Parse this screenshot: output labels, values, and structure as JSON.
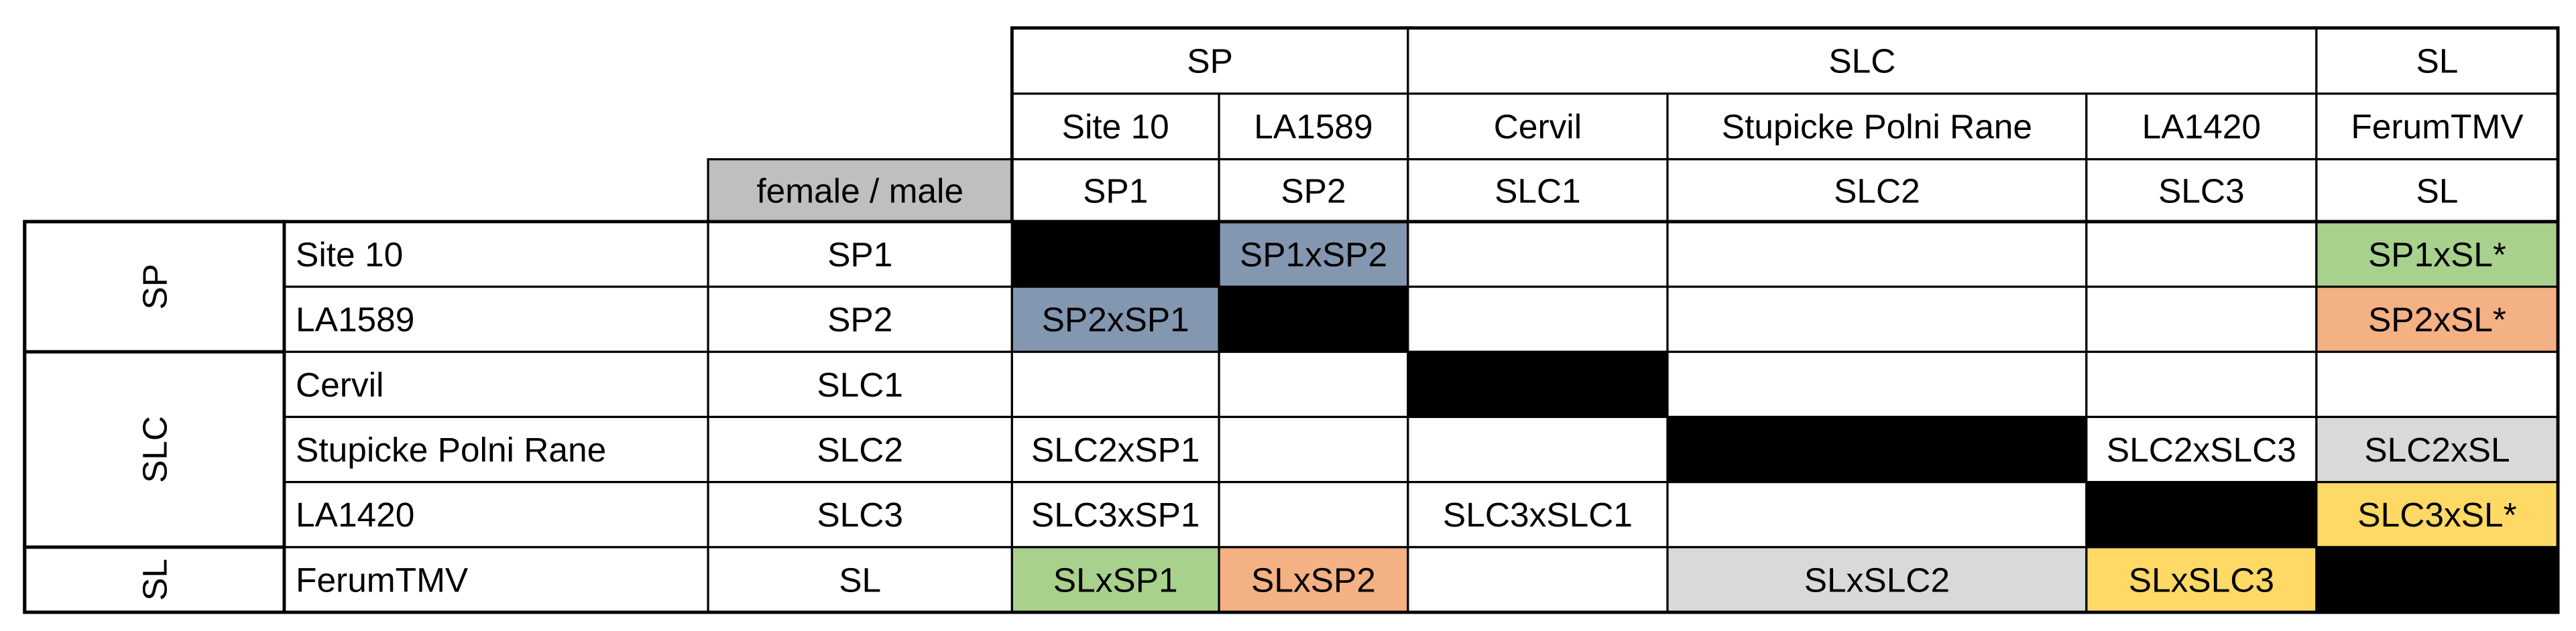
{
  "header": {
    "codes_label": "female / male",
    "codes_label_fill": "#bfbfbf",
    "groups": [
      {
        "label": "SP",
        "accessions": [
          {
            "name": "Site 10",
            "code": "SP1"
          },
          {
            "name": "LA1589",
            "code": "SP2"
          }
        ]
      },
      {
        "label": "SLC",
        "accessions": [
          {
            "name": "Cervil",
            "code": "SLC1"
          },
          {
            "name": "Stupicke Polni Rane",
            "code": "SLC2"
          },
          {
            "name": "LA1420",
            "code": "SLC3"
          }
        ]
      },
      {
        "label": "SL",
        "accessions": [
          {
            "name": "FerumTMV",
            "code": "SL"
          }
        ]
      }
    ]
  },
  "body": {
    "groups": [
      {
        "label": "SP",
        "rows": [
          {
            "name": "Site 10",
            "code": "SP1",
            "cells": [
              {
                "fill": "#000000"
              },
              {
                "text": "SP1xSP2",
                "fill": "#8497b0"
              },
              null,
              null,
              null,
              {
                "text": "SP1xSL*",
                "fill": "#a9d18e"
              }
            ]
          },
          {
            "name": "LA1589",
            "code": "SP2",
            "cells": [
              {
                "text": "SP2xSP1",
                "fill": "#8497b0"
              },
              {
                "fill": "#000000"
              },
              null,
              null,
              null,
              {
                "text": "SP2xSL*",
                "fill": "#f4b183"
              }
            ]
          }
        ]
      },
      {
        "label": "SLC",
        "rows": [
          {
            "name": "Cervil",
            "code": "SLC1",
            "cells": [
              null,
              null,
              {
                "fill": "#000000"
              },
              null,
              null,
              null
            ]
          },
          {
            "name": "Stupicke Polni Rane",
            "code": "SLC2",
            "cells": [
              {
                "text": "SLC2xSP1"
              },
              null,
              null,
              {
                "fill": "#000000"
              },
              {
                "text": "SLC2xSLC3"
              },
              {
                "text": "SLC2xSL",
                "fill": "#d9d9d9"
              }
            ]
          },
          {
            "name": "LA1420",
            "code": "SLC3",
            "cells": [
              {
                "text": "SLC3xSP1"
              },
              null,
              {
                "text": "SLC3xSLC1"
              },
              null,
              {
                "fill": "#000000"
              },
              {
                "text": "SLC3xSL*",
                "fill": "#ffd966"
              }
            ]
          }
        ]
      },
      {
        "label": "SL",
        "rows": [
          {
            "name": "FerumTMV",
            "code": "SL",
            "cells": [
              {
                "text": "SLxSP1",
                "fill": "#a9d18e"
              },
              {
                "text": "SLxSP2",
                "fill": "#f4b183"
              },
              null,
              {
                "text": "SLxSLC2",
                "fill": "#d9d9d9"
              },
              {
                "text": "SLxSLC3",
                "fill": "#ffd966"
              },
              {
                "fill": "#000000"
              }
            ]
          }
        ]
      }
    ]
  }
}
